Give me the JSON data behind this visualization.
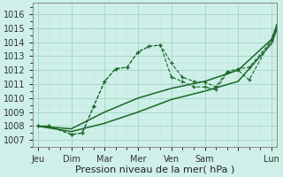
{
  "xlabel": "Pression niveau de la mer( hPa )",
  "bg_color": "#cef0e8",
  "grid_major_color": "#a8d8ce",
  "grid_minor_color": "#c0e8e0",
  "line_color": "#1a6628",
  "xlim": [
    -0.15,
    7.15
  ],
  "ylim": [
    1006.5,
    1016.8
  ],
  "yticks": [
    1007,
    1008,
    1009,
    1010,
    1011,
    1012,
    1013,
    1014,
    1015,
    1016
  ],
  "x_tick_positions": [
    0,
    1,
    2,
    3,
    4,
    5,
    6,
    7
  ],
  "x_tick_labels": [
    "Jeu",
    "Dim",
    "Mar",
    "Mer",
    "Ven",
    "Sam",
    "",
    "Lun"
  ],
  "series": {
    "detailed1": {
      "x": [
        0,
        0.33,
        1.0,
        1.33,
        1.67,
        2.0,
        2.33,
        2.67,
        3.0,
        3.33,
        3.67,
        4.0,
        4.33,
        4.67,
        5.0,
        5.33,
        5.67,
        6.0,
        6.33,
        7.0,
        7.33
      ],
      "y": [
        1008.0,
        1008.0,
        1007.4,
        1007.5,
        1009.4,
        1011.2,
        1012.1,
        1012.2,
        1013.3,
        1013.7,
        1013.8,
        1012.5,
        1011.5,
        1011.2,
        1011.15,
        1010.8,
        1011.9,
        1012.1,
        1012.2,
        1014.1,
        1016.3
      ]
    },
    "detailed2": {
      "x": [
        0,
        0.33,
        1.0,
        1.33,
        1.67,
        2.0,
        2.33,
        2.67,
        3.0,
        3.33,
        3.67,
        4.0,
        4.33,
        4.67,
        5.0,
        5.33,
        5.67,
        6.0,
        6.33,
        7.0,
        7.33
      ],
      "y": [
        1008.0,
        1008.0,
        1007.4,
        1007.5,
        1009.4,
        1011.2,
        1012.1,
        1012.2,
        1013.3,
        1013.7,
        1013.8,
        1011.5,
        1011.2,
        1010.8,
        1010.8,
        1010.6,
        1011.8,
        1012.0,
        1011.3,
        1014.2,
        1016.5
      ]
    },
    "smooth1": {
      "x": [
        0,
        1.0,
        2.0,
        3.0,
        4.0,
        5.0,
        6.0,
        7.0,
        7.33
      ],
      "y": [
        1008.0,
        1007.8,
        1009.0,
        1010.0,
        1010.7,
        1011.2,
        1012.0,
        1014.2,
        1016.2
      ]
    },
    "smooth2": {
      "x": [
        0,
        1.0,
        2.0,
        3.0,
        4.0,
        5.0,
        6.0,
        7.0,
        7.33
      ],
      "y": [
        1008.0,
        1007.6,
        1008.2,
        1009.0,
        1009.9,
        1010.5,
        1011.2,
        1013.9,
        1016.0
      ]
    }
  }
}
